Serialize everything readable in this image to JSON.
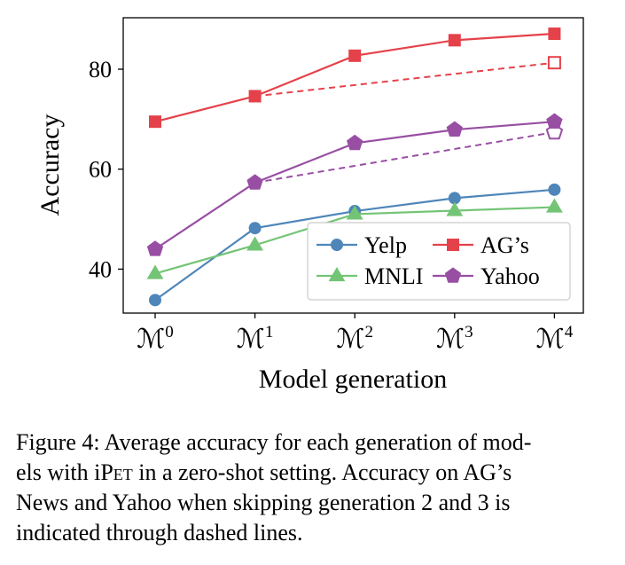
{
  "chart_data": {
    "type": "line",
    "xlabel": "Model generation",
    "ylabel": "Accuracy",
    "categories": [
      "M0",
      "M1",
      "M2",
      "M3",
      "M4"
    ],
    "category_labels": [
      {
        "base": "ℳ",
        "sup": "0"
      },
      {
        "base": "ℳ",
        "sup": "1"
      },
      {
        "base": "ℳ",
        "sup": "2"
      },
      {
        "base": "ℳ",
        "sup": "3"
      },
      {
        "base": "ℳ",
        "sup": "4"
      }
    ],
    "ylim": [
      31.2,
      90.3
    ],
    "yticks": [
      40,
      60,
      80
    ],
    "grid": false,
    "legend_position": "lower-right",
    "series": [
      {
        "name": "Yelp",
        "color": "#4e86b9",
        "marker": "circle",
        "values": [
          33.8,
          48.2,
          51.6,
          54.2,
          55.9
        ]
      },
      {
        "name": "AG's",
        "color": "#e5414a",
        "marker": "square",
        "values": [
          69.5,
          74.6,
          82.7,
          85.8,
          87.1
        ]
      },
      {
        "name": "MNLI",
        "color": "#74c476",
        "marker": "triangle",
        "values": [
          39.1,
          44.8,
          51.0,
          51.7,
          52.4
        ]
      },
      {
        "name": "Yahoo",
        "color": "#984ea3",
        "marker": "pentagon",
        "values": [
          44.0,
          57.3,
          65.2,
          67.9,
          69.5
        ]
      }
    ],
    "dashed_series": [
      {
        "of": "AG's",
        "color": "#e5414a",
        "marker": "square",
        "x": [
          "M1",
          "M4"
        ],
        "values": [
          74.6,
          81.3
        ]
      },
      {
        "of": "Yahoo",
        "color": "#984ea3",
        "marker": "pentagon",
        "x": [
          "M1",
          "M4"
        ],
        "values": [
          57.3,
          67.4
        ]
      }
    ]
  },
  "caption": {
    "lines": [
      {
        "parts": [
          {
            "text": "Figure 4: Average accuracy for each generation of mod-"
          }
        ]
      },
      {
        "parts": [
          {
            "text": "els with i"
          },
          {
            "text": "Pet",
            "smallcaps": true
          },
          {
            "text": " in a zero-shot setting. Accuracy on AG’s"
          }
        ]
      },
      {
        "parts": [
          {
            "text": "News and Yahoo when skipping generation 2 and 3 is"
          }
        ]
      },
      {
        "parts": [
          {
            "text": "indicated through dashed lines."
          }
        ]
      }
    ]
  }
}
